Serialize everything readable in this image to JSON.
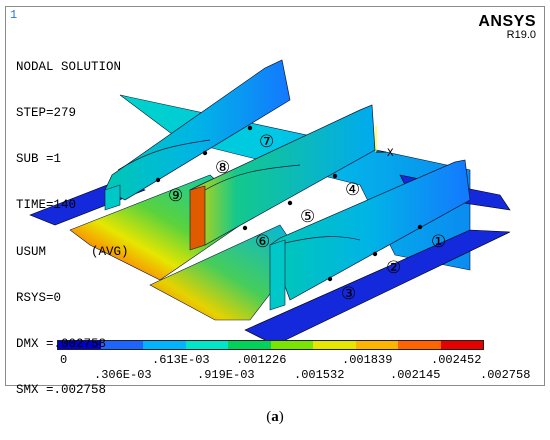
{
  "window_number": "1",
  "info_lines": [
    "NODAL SOLUTION",
    "STEP=279",
    "SUB =1",
    "TIME=140",
    "USUM      (AVG)",
    "RSYS=0",
    "DMX =.002758",
    "SMX =.002758"
  ],
  "brand": {
    "name": "ANSYS",
    "version": "R19.0"
  },
  "axis_label": "X",
  "markers": [
    "①",
    "②",
    "③",
    "④",
    "⑤",
    "⑥",
    "⑦",
    "⑧",
    "⑨"
  ],
  "legend": {
    "colors": [
      "#0000c8",
      "#1e64ff",
      "#00b4ff",
      "#00e6c8",
      "#00d25a",
      "#78e600",
      "#e6e600",
      "#ffb400",
      "#ff6400",
      "#e60000"
    ],
    "upper_labels": [
      "0",
      ".613E-03",
      ".001226",
      ".001839",
      ".002452"
    ],
    "lower_labels": [
      ".306E-03",
      ".919E-03",
      ".001532",
      ".002145",
      ".002758"
    ]
  },
  "caption": {
    "open": "(",
    "letter": "a",
    "close": ")"
  }
}
